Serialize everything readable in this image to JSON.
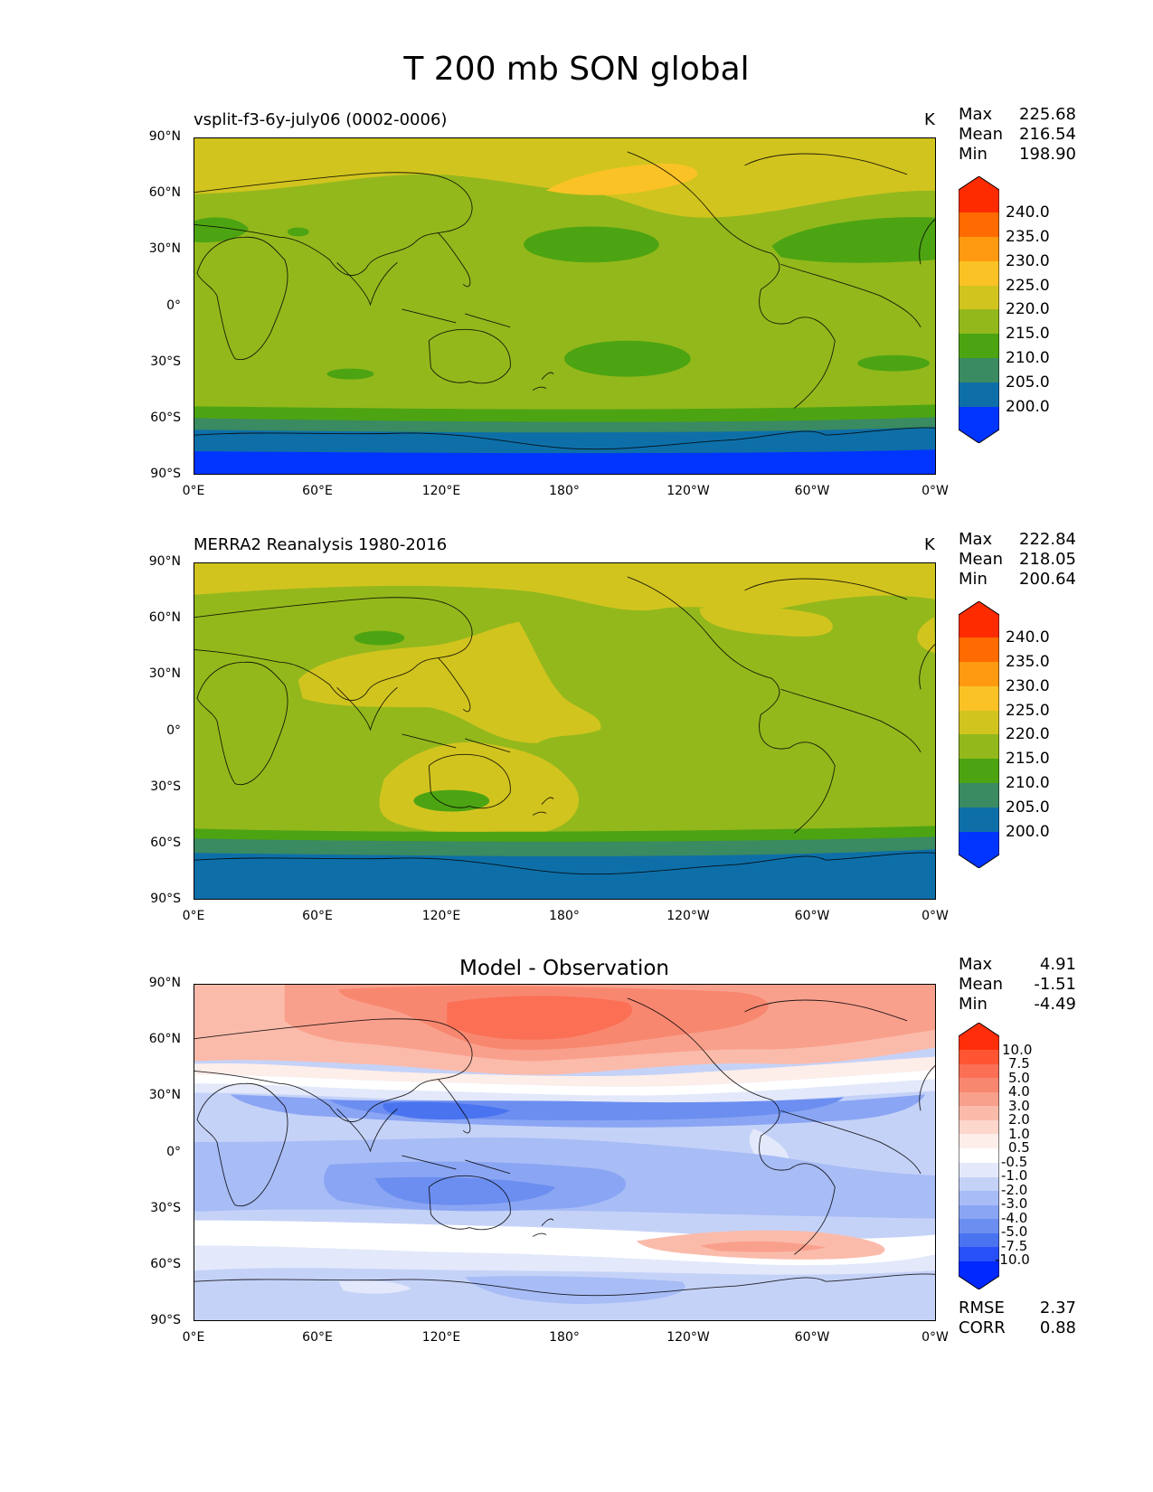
{
  "title": "T 200 mb SON global",
  "x_ticks": [
    "0°E",
    "60°E",
    "120°E",
    "180°",
    "120°W",
    "60°W",
    "0°W"
  ],
  "y_ticks": [
    "90°N",
    "60°N",
    "30°N",
    "0°",
    "30°S",
    "60°S",
    "90°S"
  ],
  "panels": [
    {
      "title": "vsplit-f3-6y-july06 (0002-0006)",
      "units": "K",
      "stats": {
        "max_label": "Max",
        "max": "225.68",
        "mean_label": "Mean",
        "mean": "216.54",
        "min_label": "Min",
        "min": "198.90"
      },
      "colorbar": {
        "labels": [
          "240.0",
          "235.0",
          "230.0",
          "225.0",
          "220.0",
          "215.0",
          "210.0",
          "205.0",
          "200.0"
        ],
        "colors": [
          "#ff2b00",
          "#ff6b00",
          "#ff9a10",
          "#fbc225",
          "#d2c41f",
          "#93b81c",
          "#4ca412",
          "#3a8a62",
          "#0e6fa8",
          "#0034ff"
        ]
      }
    },
    {
      "title": "MERRA2 Reanalysis 1980-2016",
      "units": "K",
      "stats": {
        "max_label": "Max",
        "max": "222.84",
        "mean_label": "Mean",
        "mean": "218.05",
        "min_label": "Min",
        "min": "200.64"
      },
      "colorbar": {
        "labels": [
          "240.0",
          "235.0",
          "230.0",
          "225.0",
          "220.0",
          "215.0",
          "210.0",
          "205.0",
          "200.0"
        ],
        "colors": [
          "#ff2b00",
          "#ff6b00",
          "#ff9a10",
          "#fbc225",
          "#d2c41f",
          "#93b81c",
          "#4ca412",
          "#3a8a62",
          "#0e6fa8",
          "#0034ff"
        ]
      }
    },
    {
      "title": "Model - Observation",
      "stats": {
        "max_label": "Max",
        "max": "4.91",
        "mean_label": "Mean",
        "mean": "-1.51",
        "min_label": "Min",
        "min": "-4.49"
      },
      "colorbar": {
        "labels": [
          "10.0",
          "7.5",
          "5.0",
          "4.0",
          "3.0",
          "2.0",
          "1.0",
          "0.5",
          "-0.5",
          "-1.0",
          "-2.0",
          "-3.0",
          "-4.0",
          "-5.0",
          "-7.5",
          "-10.0"
        ],
        "colors": [
          "#ff2e0a",
          "#ff5533",
          "#fb6f55",
          "#f88770",
          "#f9a08c",
          "#fbbbab",
          "#fdd6cc",
          "#feeee9",
          "#ffffff",
          "#e3e9fb",
          "#c5d2f8",
          "#a8bcf6",
          "#8aa5f3",
          "#6c8ef0",
          "#4a73f0",
          "#2750f8",
          "#0028ff"
        ]
      },
      "rmse_label": "RMSE",
      "rmse": "2.37",
      "corr_label": "CORR",
      "corr": "0.88"
    }
  ]
}
